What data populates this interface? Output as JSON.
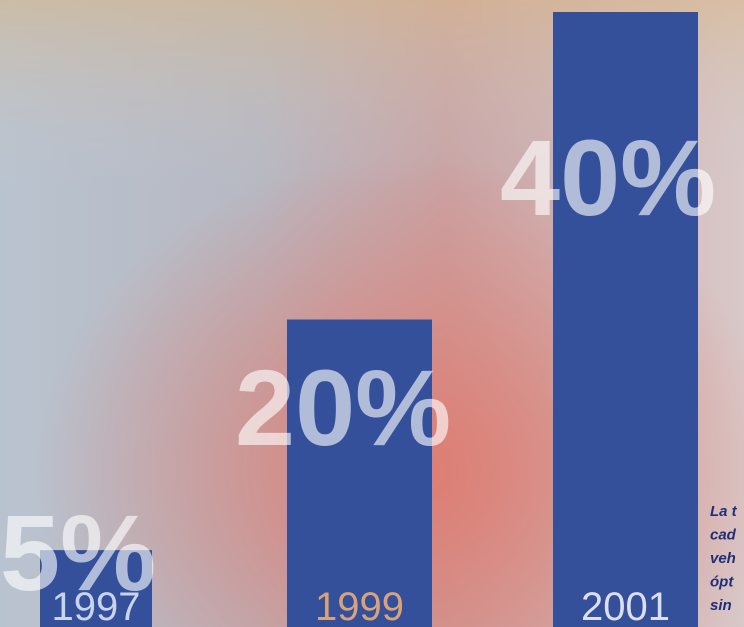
{
  "chart_data": {
    "type": "bar",
    "categories": [
      "1997",
      "1999",
      "2001"
    ],
    "values": [
      5,
      20,
      40
    ],
    "value_labels": [
      "5%",
      "20%",
      "40%"
    ],
    "color": "#34509a",
    "annotation_lines": [
      "La t",
      "cad",
      "veh",
      "ópt",
      "sin"
    ]
  }
}
